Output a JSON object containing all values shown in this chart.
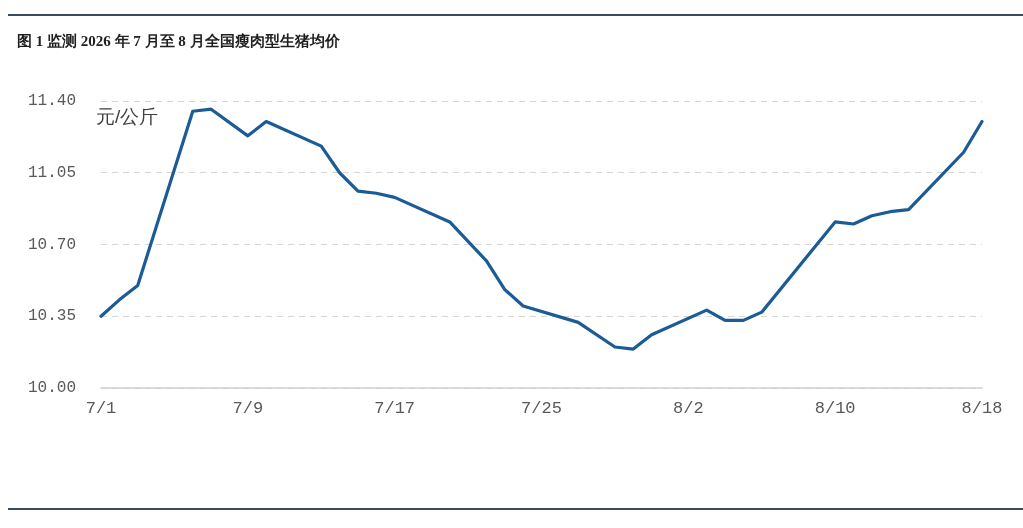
{
  "chart_data": {
    "type": "line",
    "title": "图 1 监测 2026 年 7 月至 8 月全国瘦肉型生猪均价",
    "ylabel": "元/公斤",
    "x": [
      "2026-07-01",
      "2026-07-02",
      "2026-07-03",
      "2026-07-06",
      "2026-07-07",
      "2026-07-09",
      "2026-07-10",
      "2026-07-13",
      "2026-07-14",
      "2026-07-15",
      "2026-07-16",
      "2026-07-17",
      "2026-07-20",
      "2026-07-22",
      "2026-07-23",
      "2026-07-24",
      "2026-07-27",
      "2026-07-29",
      "2026-07-30",
      "2026-07-31",
      "2026-08-03",
      "2026-08-04",
      "2026-08-05",
      "2026-08-06",
      "2026-08-10",
      "2026-08-11",
      "2026-08-12",
      "2026-08-13",
      "2026-08-14",
      "2026-08-17",
      "2026-08-18"
    ],
    "series": [
      {
        "color": "#1b5b96",
        "values": [
          10.35,
          10.43,
          10.5,
          11.35,
          11.36,
          11.23,
          11.3,
          11.18,
          11.05,
          10.96,
          10.95,
          10.93,
          10.81,
          10.62,
          10.48,
          10.4,
          10.32,
          10.2,
          10.19,
          10.26,
          10.38,
          10.33,
          10.33,
          10.37,
          10.81,
          10.8,
          10.84,
          10.86,
          10.87,
          11.15,
          11.3
        ]
      }
    ],
    "xlim": [
      "2026-07-01",
      "2026-08-18"
    ],
    "xticks": [
      {
        "value": "2026-07-01",
        "label": "7/1"
      },
      {
        "value": "2026-07-09",
        "label": "7/9"
      },
      {
        "value": "2026-07-17",
        "label": "7/17"
      },
      {
        "value": "2026-07-25",
        "label": "7/25"
      },
      {
        "value": "2026-08-02",
        "label": "8/2"
      },
      {
        "value": "2026-08-10",
        "label": "8/10"
      },
      {
        "value": "2026-08-18",
        "label": "8/18"
      }
    ],
    "ylim": [
      10,
      11.4
    ],
    "yticks": [
      {
        "value": 10,
        "label": "10.00"
      },
      10.35,
      {
        "value": 10.7,
        "label": "10.70"
      },
      11.05,
      {
        "value": 11.4,
        "label": "11.40"
      }
    ],
    "grid": "y",
    "marker": "none",
    "line_style": "solid"
  }
}
